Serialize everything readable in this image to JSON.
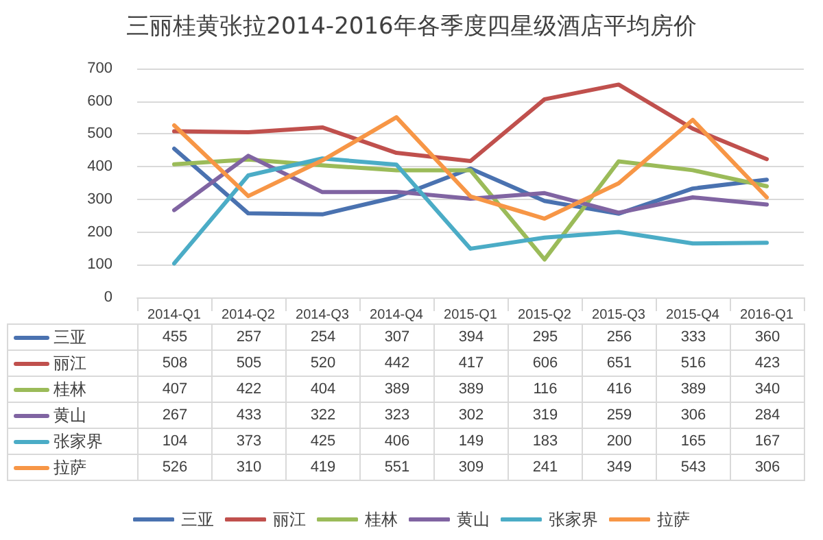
{
  "chart_data": {
    "type": "line",
    "title": "三丽桂黄张拉2014-2016年各季度四星级酒店平均房价",
    "categories": [
      "2014-Q1",
      "2014-Q2",
      "2014-Q3",
      "2014-Q4",
      "2015-Q1",
      "2015-Q2",
      "2015-Q3",
      "2015-Q4",
      "2016-Q1"
    ],
    "series": [
      {
        "name": "三亚",
        "color": "#4a72b0",
        "values": [
          455,
          257,
          254,
          307,
          394,
          295,
          256,
          333,
          360
        ]
      },
      {
        "name": "丽江",
        "color": "#c0504d",
        "values": [
          508,
          505,
          520,
          442,
          417,
          606,
          651,
          516,
          423
        ]
      },
      {
        "name": "桂林",
        "color": "#9bbb59",
        "values": [
          407,
          422,
          404,
          389,
          389,
          116,
          416,
          389,
          340
        ]
      },
      {
        "name": "黄山",
        "color": "#8064a2",
        "values": [
          267,
          433,
          322,
          323,
          302,
          319,
          259,
          306,
          284
        ]
      },
      {
        "name": "张家界",
        "color": "#4bacc6",
        "values": [
          104,
          373,
          425,
          406,
          149,
          183,
          200,
          165,
          167
        ]
      },
      {
        "name": "拉萨",
        "color": "#f79646",
        "values": [
          526,
          310,
          419,
          551,
          309,
          241,
          349,
          543,
          306
        ]
      }
    ],
    "ylim": [
      0,
      700
    ],
    "yticks": [
      0,
      100,
      200,
      300,
      400,
      500,
      600,
      700
    ],
    "grid": "y",
    "legend": "bottom",
    "marker": "none",
    "line_style": "solid",
    "data_labels": true
  }
}
